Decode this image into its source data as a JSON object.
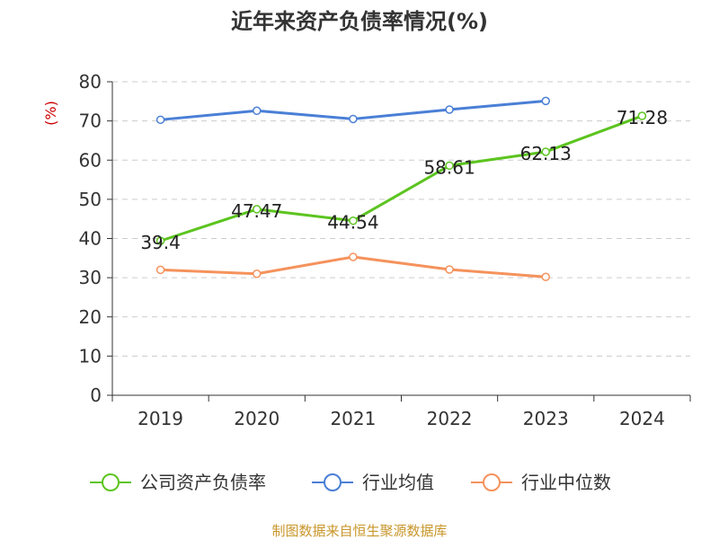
{
  "chart_data": {
    "type": "line",
    "title": "近年来资产负债率情况(%)",
    "ylabel": "(%)",
    "xlabel": "",
    "categories": [
      "2019",
      "2020",
      "2021",
      "2022",
      "2023",
      "2024"
    ],
    "ylim": [
      0,
      80
    ],
    "yticks": [
      0,
      10,
      20,
      30,
      40,
      50,
      60,
      70,
      80
    ],
    "grid": true,
    "legend_position": "bottom",
    "series": [
      {
        "name": "公司资产负债率",
        "color": "#5cc41f",
        "values": [
          39.4,
          47.47,
          44.54,
          58.61,
          62.13,
          71.28
        ],
        "data_labels": [
          "39.4",
          "47.47",
          "44.54",
          "58.61",
          "62.13",
          "71.28"
        ]
      },
      {
        "name": "行业均值",
        "color": "#4a7fd6",
        "values": [
          70.3,
          72.6,
          70.5,
          72.9,
          75.1,
          null
        ]
      },
      {
        "name": "行业中位数",
        "color": "#f5925c",
        "values": [
          32.0,
          31.0,
          35.3,
          32.1,
          30.2,
          null
        ]
      }
    ]
  },
  "footer": {
    "source": "制图数据来自恒生聚源数据库"
  }
}
